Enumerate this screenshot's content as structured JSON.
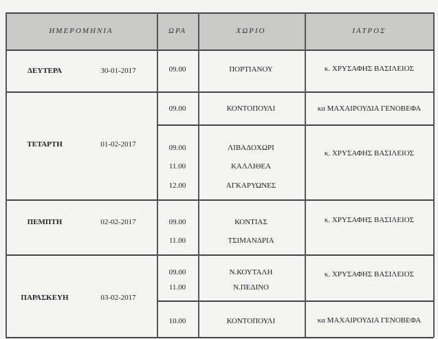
{
  "headers": {
    "date": "ΗΜΕΡΟΜΗΝΙΑ",
    "time": "ΩΡΑ",
    "village": "ΧΩΡΙΟ",
    "doctor": "ΙΑΤΡΟΣ"
  },
  "days": [
    {
      "day": "ΔΕΥΤΕΡΑ",
      "date": "30-01-2017",
      "slots": [
        {
          "times": [
            "09.00"
          ],
          "villages": [
            "ΠΟΡΤΙΑΝΟΥ"
          ],
          "doctor": "κ. ΧΡΥΣΑΦΗΣ ΒΑΣΙΛΕΙΟΣ"
        }
      ]
    },
    {
      "day": "ΤΕΤΑΡΤΗ",
      "date": "01-02-2017",
      "slots": [
        {
          "times": [
            "09.00"
          ],
          "villages": [
            "ΚΟΝΤΟΠΟΥΛΙ"
          ],
          "doctor": "κα ΜΑΧΑΙΡΟΥΔΙΑ ΓΕΝΟΒΕΦΑ"
        },
        {
          "times": [
            "09.00",
            "11.00",
            "12.00"
          ],
          "villages": [
            "ΛΙΒΑΔΟΧΩΡΙ",
            "ΚΑΛΛΙΘΕΑ",
            "ΑΓΚΑΡΥΩΝΕΣ"
          ],
          "doctor": "κ. ΧΡΥΣΑΦΗΣ ΒΑΣΙΛΕΙΟΣ"
        }
      ]
    },
    {
      "day": "ΠΕΜΠΤΗ",
      "date": "02-02-2017",
      "slots": [
        {
          "times": [
            "09.00",
            "11.00"
          ],
          "villages": [
            "ΚΟΝΤΙΑΣ",
            "ΤΣΙΜΑΝΔΡΙΑ"
          ],
          "doctor": "κ. ΧΡΥΣΑΦΗΣ ΒΑΣΙΛΕΙΟΣ"
        }
      ]
    },
    {
      "day": "ΠΑΡΑΣΚΕΥΗ",
      "date": "03-02-2017",
      "slots": [
        {
          "times": [
            "09.00",
            "11.00"
          ],
          "villages": [
            "Ν.ΚΟΥΤΑΛΗ",
            "Ν.ΠΕΔΙΝΟ"
          ],
          "doctor": "κ. ΧΡΥΣΑΦΗΣ ΒΑΣΙΛΕΙΟΣ"
        },
        {
          "times": [
            "10.00"
          ],
          "villages": [
            "ΚΟΝΤΟΠΟΥΛΙ"
          ],
          "doctor": "κα ΜΑΧΑΙΡΟΥΔΙΑ ΓΕΝΟΒΕΦΑ"
        }
      ]
    }
  ]
}
